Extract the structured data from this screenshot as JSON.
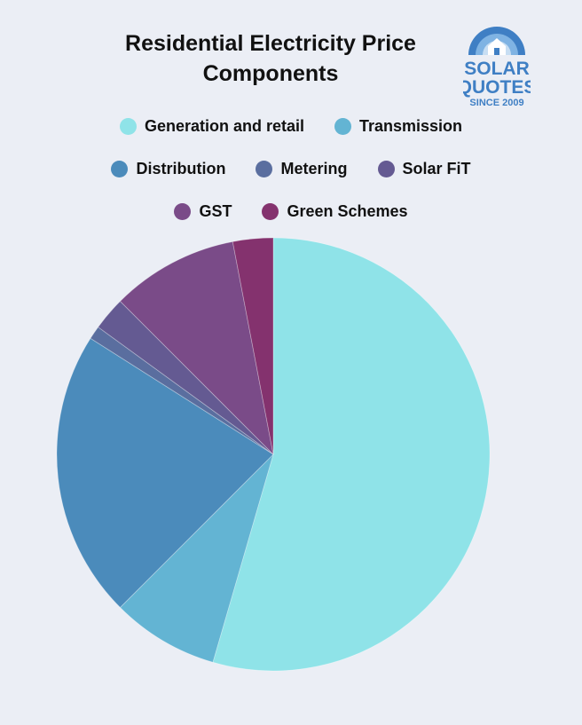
{
  "chart_data": {
    "type": "pie",
    "title": "Residential Electricity Price Components",
    "labels": [
      "Generation and retail",
      "Transmission",
      "Distribution",
      "Metering",
      "Solar FiT",
      "GST",
      "Green Schemes"
    ],
    "values": [
      54.5,
      8.0,
      21.5,
      1.0,
      2.5,
      9.5,
      3.0
    ],
    "colors": [
      "#8fe3e8",
      "#63b4d3",
      "#4b8bbb",
      "#5a6e9f",
      "#645a92",
      "#7a4b88",
      "#84326e"
    ],
    "legend_position": "top"
  },
  "logo": {
    "line1": "SOLAR",
    "line2": "QUOTES",
    "tagline": "SINCE 2009"
  }
}
